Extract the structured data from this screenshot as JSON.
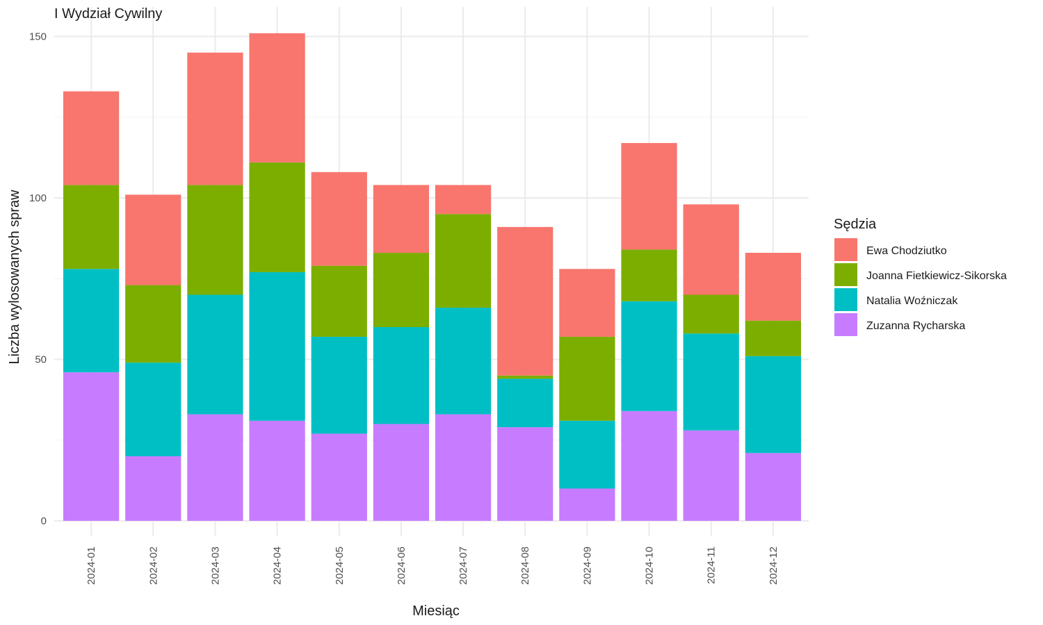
{
  "chart_data": {
    "type": "bar",
    "stacked": true,
    "title": "I Wydział Cywilny",
    "xlabel": "Miesiąc",
    "ylabel": "Liczba wylosowanych spraw",
    "ylim": [
      0,
      150
    ],
    "yticks": [
      "0",
      "50",
      "100",
      "150"
    ],
    "grid": true,
    "legend_title": "Sędzia",
    "legend_position": "right",
    "categories": [
      "2024-01",
      "2024-02",
      "2024-03",
      "2024-04",
      "2024-05",
      "2024-06",
      "2024-07",
      "2024-08",
      "2024-09",
      "2024-10",
      "2024-11",
      "2024-12"
    ],
    "series": [
      {
        "name": "Ewa Chodziutko",
        "color": "#F8766D",
        "values": [
          29,
          28,
          41,
          40,
          29,
          21,
          9,
          46,
          21,
          33,
          28,
          21
        ]
      },
      {
        "name": "Joanna Fietkiewicz-Sikorska",
        "color": "#7CAE00",
        "values": [
          26,
          24,
          34,
          34,
          22,
          23,
          29,
          1,
          26,
          16,
          12,
          11
        ]
      },
      {
        "name": "Natalia Woźniczak",
        "color": "#00BFC4",
        "values": [
          32,
          29,
          37,
          46,
          30,
          30,
          33,
          15,
          21,
          34,
          30,
          30
        ]
      },
      {
        "name": "Zuzanna Rycharska",
        "color": "#C77CFF",
        "values": [
          46,
          20,
          33,
          31,
          27,
          30,
          33,
          29,
          10,
          34,
          28,
          21
        ]
      }
    ]
  }
}
